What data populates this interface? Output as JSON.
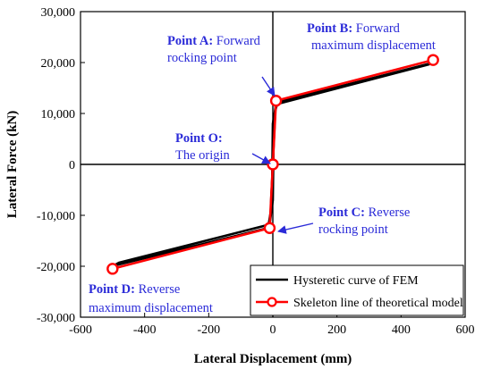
{
  "chart_data": {
    "type": "line",
    "xlabel": "Lateral Displacement (mm)",
    "ylabel": "Lateral Force (kN)",
    "xlim": [
      -600,
      600
    ],
    "ylim": [
      -30000,
      30000
    ],
    "xticks": [
      -600,
      -400,
      -200,
      0,
      200,
      400,
      600
    ],
    "yticks": [
      -30000,
      -20000,
      -10000,
      0,
      10000,
      20000,
      30000
    ],
    "xtick_labels": [
      "-600",
      "-400",
      "-200",
      "0",
      "200",
      "400",
      "600"
    ],
    "ytick_labels": [
      "-30,000",
      "-20,000",
      "-10,000",
      "0",
      "10,000",
      "20,000",
      "30,000"
    ],
    "grid": false,
    "legend_position": "bottom-right",
    "series": [
      {
        "name": "Hysteretic curve of FEM",
        "color": "#000000",
        "loops": [
          {
            "x": [
              -1,
              5,
              15,
              490,
              500,
              485,
              10,
              0,
              -3,
              -15,
              -490,
              -500,
              -480,
              -10,
              0,
              2,
              8
            ],
            "y": [
              -1000,
              10000,
              12200,
              19800,
              20000,
              19600,
              11800,
              8000,
              -8000,
              -12500,
              -19800,
              -20000,
              -19300,
              -11800,
              -7000,
              3000,
              11000
            ]
          },
          {
            "x": [
              -10,
              -6,
              -2,
              3,
              6,
              9,
              4,
              -1,
              -6,
              -9
            ],
            "y": [
              -11500,
              -8000,
              -3000,
              3000,
              8000,
              11500,
              6000,
              0,
              -6000,
              -11000
            ]
          }
        ]
      },
      {
        "name": "Skeleton line of theoretical model",
        "color": "#ff0000",
        "x": [
          -500,
          -10,
          0,
          10,
          500
        ],
        "y": [
          -20500,
          -12500,
          0,
          12500,
          20500
        ]
      }
    ],
    "points": [
      {
        "name": "O",
        "x": 0,
        "y": 0
      },
      {
        "name": "A",
        "x": 10,
        "y": 12500
      },
      {
        "name": "B",
        "x": 500,
        "y": 20500
      },
      {
        "name": "C",
        "x": -10,
        "y": -12500
      },
      {
        "name": "D",
        "x": -500,
        "y": -20500
      }
    ],
    "annotations": [
      {
        "id": "A",
        "bold": "Point A:",
        "rest": " Forward",
        "line2": "rocking point"
      },
      {
        "id": "B",
        "bold": "Point B:",
        "rest": " Forward",
        "line2": "maximum displacement"
      },
      {
        "id": "O",
        "bold": "Point O:",
        "rest": "",
        "line2": "The origin"
      },
      {
        "id": "C",
        "bold": "Point C:",
        "rest": " Reverse",
        "line2": "rocking point"
      },
      {
        "id": "D",
        "bold": "Point D:",
        "rest": " Reverse",
        "line2": "maximum displacement"
      }
    ]
  },
  "colors": {
    "annotation": "#2b2bd8",
    "skeleton": "#ff0000",
    "fem": "#000000"
  }
}
